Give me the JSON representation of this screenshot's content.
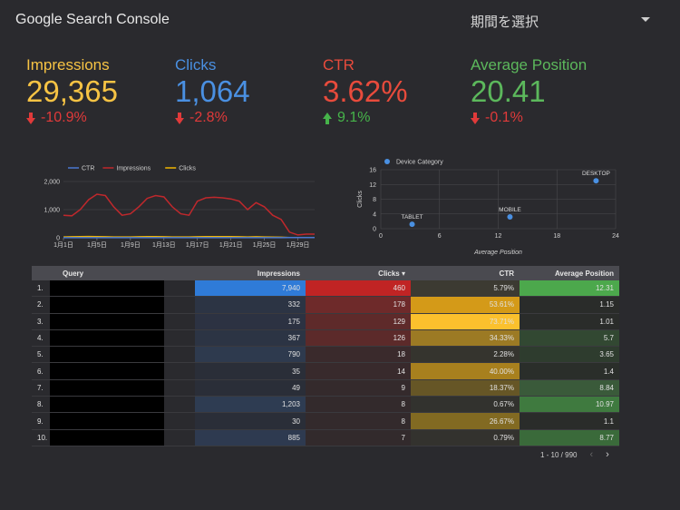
{
  "header": {
    "title": "Google Search Console",
    "date_select": "期間を選択"
  },
  "colors": {
    "impressions": "#f6c344",
    "clicks": "#4a90e2",
    "ctr": "#e84b3c",
    "position": "#5cb85c",
    "down": "#e03a3a",
    "up": "#46b44a"
  },
  "kpis": [
    {
      "label": "Impressions",
      "value": "29,365",
      "delta": "-10.9%",
      "direction": "down",
      "color": "#f6c344"
    },
    {
      "label": "Clicks",
      "value": "1,064",
      "delta": "-2.8%",
      "direction": "down",
      "color": "#4a90e2"
    },
    {
      "label": "CTR",
      "value": "3.62%",
      "delta": "9.1%",
      "direction": "up",
      "color": "#e84b3c"
    },
    {
      "label": "Average Position",
      "value": "20.41",
      "delta": "-0.1%",
      "direction": "down",
      "color": "#5cb85c"
    }
  ],
  "chart_data": [
    {
      "type": "line",
      "legend": [
        "CTR",
        "Impressions",
        "Clicks"
      ],
      "legend_colors": [
        "#4a78d0",
        "#c0282c",
        "#f0b400"
      ],
      "x": [
        "1月1日",
        "1月2日",
        "1月3日",
        "1月4日",
        "1月5日",
        "1月6日",
        "1月7日",
        "1月8日",
        "1月9日",
        "1月10日",
        "1月11日",
        "1月12日",
        "1月13日",
        "1月14日",
        "1月15日",
        "1月16日",
        "1月17日",
        "1月18日",
        "1月19日",
        "1月20日",
        "1月21日",
        "1月22日",
        "1月23日",
        "1月24日",
        "1月25日",
        "1月26日",
        "1月27日",
        "1月28日",
        "1月29日",
        "1月30日",
        "1月31日"
      ],
      "x_ticks": [
        "1月1日",
        "1月5日",
        "1月9日",
        "1月13日",
        "1月17日",
        "1月21日",
        "1月25日",
        "1月29日"
      ],
      "y_ticks": [
        "0",
        "1,000",
        "2,000"
      ],
      "ylim": [
        0,
        2000
      ],
      "series": [
        {
          "name": "Impressions",
          "values": [
            800,
            780,
            1000,
            1350,
            1550,
            1500,
            1100,
            800,
            850,
            1100,
            1400,
            1500,
            1450,
            1100,
            850,
            800,
            1300,
            1420,
            1440,
            1420,
            1380,
            1300,
            1000,
            1250,
            1100,
            800,
            650,
            200,
            100,
            130,
            130
          ]
        },
        {
          "name": "Clicks",
          "values": [
            30,
            35,
            40,
            45,
            40,
            35,
            30,
            30,
            30,
            35,
            40,
            40,
            35,
            30,
            30,
            30,
            35,
            40,
            40,
            40,
            38,
            35,
            30,
            35,
            30,
            25,
            20,
            10,
            5,
            6,
            6
          ]
        },
        {
          "name": "CTR",
          "values": [
            4,
            4,
            4,
            3,
            3,
            3,
            3,
            4,
            4,
            3,
            3,
            3,
            3,
            3,
            4,
            4,
            3,
            3,
            3,
            3,
            3,
            3,
            3,
            3,
            3,
            3,
            3,
            5,
            5,
            5,
            5
          ]
        }
      ]
    },
    {
      "type": "scatter",
      "legend": [
        "Device Category"
      ],
      "xlabel": "Average Position",
      "ylabel": "Clicks",
      "xlim": [
        0,
        24
      ],
      "ylim": [
        0,
        16
      ],
      "x_ticks": [
        "0",
        "6",
        "12",
        "18",
        "24"
      ],
      "y_ticks": [
        "0",
        "4",
        "8",
        "12",
        "16"
      ],
      "points": [
        {
          "label": "TABLET",
          "x": 3.2,
          "y": 1.2
        },
        {
          "label": "MOBILE",
          "x": 13.2,
          "y": 3.2
        },
        {
          "label": "DESKTOP",
          "x": 22,
          "y": 13
        }
      ]
    }
  ],
  "table": {
    "headers": {
      "query": "Query",
      "impressions": "Impressions",
      "clicks": "Clicks",
      "ctr": "CTR",
      "position": "Average Position"
    },
    "rows": [
      {
        "idx": "1.",
        "impressions": "7,940",
        "clicks": "460",
        "ctr": "5.79%",
        "position": "12.31",
        "i_bg": "#2f7bd8",
        "c_bg": "#c02424",
        "r_bg": "#3c3a32",
        "p_bg": "#4ca84c"
      },
      {
        "idx": "2.",
        "impressions": "332",
        "clicks": "178",
        "ctr": "53.61%",
        "position": "1.15",
        "i_bg": "#2c3444",
        "c_bg": "#6e2a2a",
        "r_bg": "#d49a18",
        "p_bg": "#2a2c2a"
      },
      {
        "idx": "3.",
        "impressions": "175",
        "clicks": "129",
        "ctr": "73.71%",
        "position": "1.01",
        "i_bg": "#2c3242",
        "c_bg": "#5e2a2a",
        "r_bg": "#fbc02d",
        "p_bg": "#2a2c2a"
      },
      {
        "idx": "4.",
        "impressions": "367",
        "clicks": "126",
        "ctr": "34.33%",
        "position": "5.7",
        "i_bg": "#2c3444",
        "c_bg": "#5c2a2a",
        "r_bg": "#9c7a24",
        "p_bg": "#324832"
      },
      {
        "idx": "5.",
        "impressions": "790",
        "clicks": "18",
        "ctr": "2.28%",
        "position": "3.65",
        "i_bg": "#2e3a4e",
        "c_bg": "#3a2a2c",
        "r_bg": "#35342e",
        "p_bg": "#2e3c2e"
      },
      {
        "idx": "6.",
        "impressions": "35",
        "clicks": "14",
        "ctr": "40.00%",
        "position": "1.4",
        "i_bg": "#2a2e38",
        "c_bg": "#382a2c",
        "r_bg": "#a8801e",
        "p_bg": "#2a2e2a"
      },
      {
        "idx": "7.",
        "impressions": "49",
        "clicks": "9",
        "ctr": "18.37%",
        "position": "8.84",
        "i_bg": "#2a2e38",
        "c_bg": "#342a2c",
        "r_bg": "#665626",
        "p_bg": "#3a5a3a"
      },
      {
        "idx": "8.",
        "impressions": "1,203",
        "clicks": "8",
        "ctr": "0.67%",
        "position": "10.97",
        "i_bg": "#2e3c52",
        "c_bg": "#332a2c",
        "r_bg": "#32322e",
        "p_bg": "#3f7a3f"
      },
      {
        "idx": "9.",
        "impressions": "30",
        "clicks": "8",
        "ctr": "26.67%",
        "position": "1.1",
        "i_bg": "#2a2e38",
        "c_bg": "#332a2c",
        "r_bg": "#826a22",
        "p_bg": "#2a2c2a"
      },
      {
        "idx": "10.",
        "impressions": "885",
        "clicks": "7",
        "ctr": "0.79%",
        "position": "8.77",
        "i_bg": "#2e3a50",
        "c_bg": "#322a2c",
        "r_bg": "#33322e",
        "p_bg": "#3a6a3a"
      }
    ]
  },
  "pager": {
    "range": "1 - 10 / 990",
    "prev": "‹",
    "next": "›"
  }
}
